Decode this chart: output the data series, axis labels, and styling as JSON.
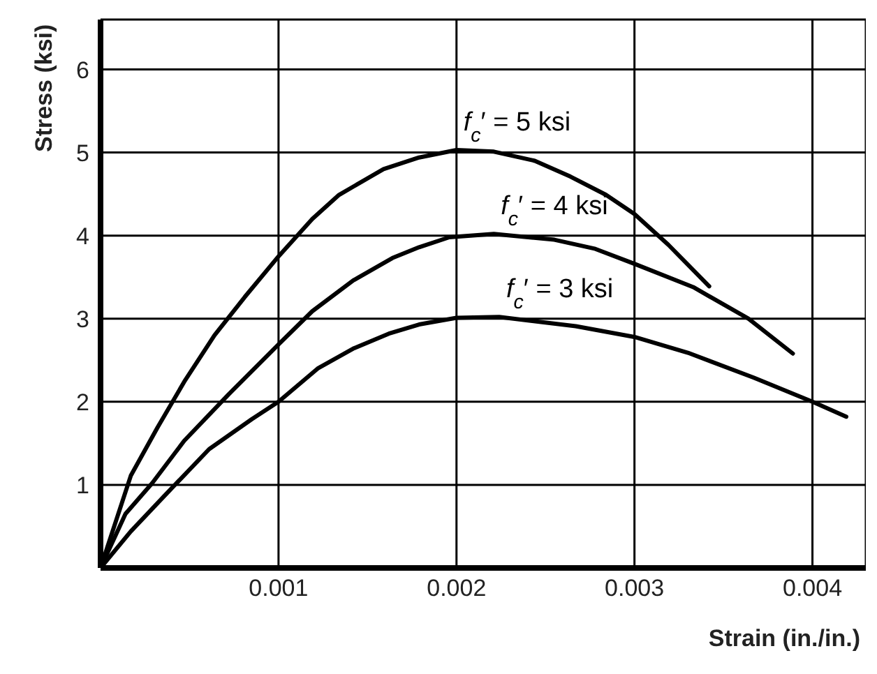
{
  "chart_data": {
    "type": "line",
    "xlabel": "Strain (in./in.)",
    "ylabel": "Stress (ksi)",
    "xlim": [
      0,
      0.0043
    ],
    "xticks": [
      0.001,
      0.002,
      0.003,
      0.004
    ],
    "ylim": [
      0,
      6.6
    ],
    "yticks": [
      1,
      2,
      3,
      4,
      5,
      6
    ],
    "grid": true,
    "legend": false,
    "marker": "none",
    "line_style": "solid",
    "series": [
      {
        "name": "f$_{c}$′ = 5 ksi",
        "color": "#000000",
        "x": [
          0,
          0.00017,
          0.00032,
          0.00047,
          0.00064,
          0.00081,
          0.001,
          0.00119,
          0.00134,
          0.00159,
          0.00179,
          0.002,
          0.00221,
          0.00244,
          0.00264,
          0.00284,
          0.003,
          0.00319,
          0.00342
        ],
        "values": [
          0,
          1.11,
          1.69,
          2.24,
          2.8,
          3.26,
          3.75,
          4.2,
          4.49,
          4.8,
          4.94,
          5.03,
          5.01,
          4.9,
          4.71,
          4.49,
          4.26,
          3.89,
          3.39
        ]
      },
      {
        "name": "f$_{c}$′ = 4 ksi",
        "color": "#000000",
        "x": [
          0,
          0.00014,
          0.00029,
          0.00047,
          0.00072,
          0.001,
          0.00119,
          0.00142,
          0.00164,
          0.00179,
          0.00196,
          0.00221,
          0.00255,
          0.00278,
          0.003,
          0.00333,
          0.00364,
          0.00389
        ],
        "values": [
          0,
          0.65,
          1.02,
          1.53,
          2.09,
          2.69,
          3.09,
          3.46,
          3.73,
          3.86,
          3.98,
          4.02,
          3.95,
          3.84,
          3.66,
          3.38,
          3.0,
          2.58
        ]
      },
      {
        "name": "f$_{c}$′ = 3 ksi",
        "color": "#000000",
        "x": [
          0,
          0.00017,
          0.00036,
          0.00061,
          0.00085,
          0.001,
          0.00122,
          0.00142,
          0.00162,
          0.00179,
          0.002,
          0.00224,
          0.00267,
          0.003,
          0.0033,
          0.00367,
          0.004,
          0.00419
        ],
        "values": [
          0,
          0.44,
          0.87,
          1.43,
          1.79,
          2.0,
          2.4,
          2.64,
          2.82,
          2.93,
          3.01,
          3.02,
          2.91,
          2.78,
          2.59,
          2.29,
          2.0,
          1.82
        ]
      }
    ]
  }
}
